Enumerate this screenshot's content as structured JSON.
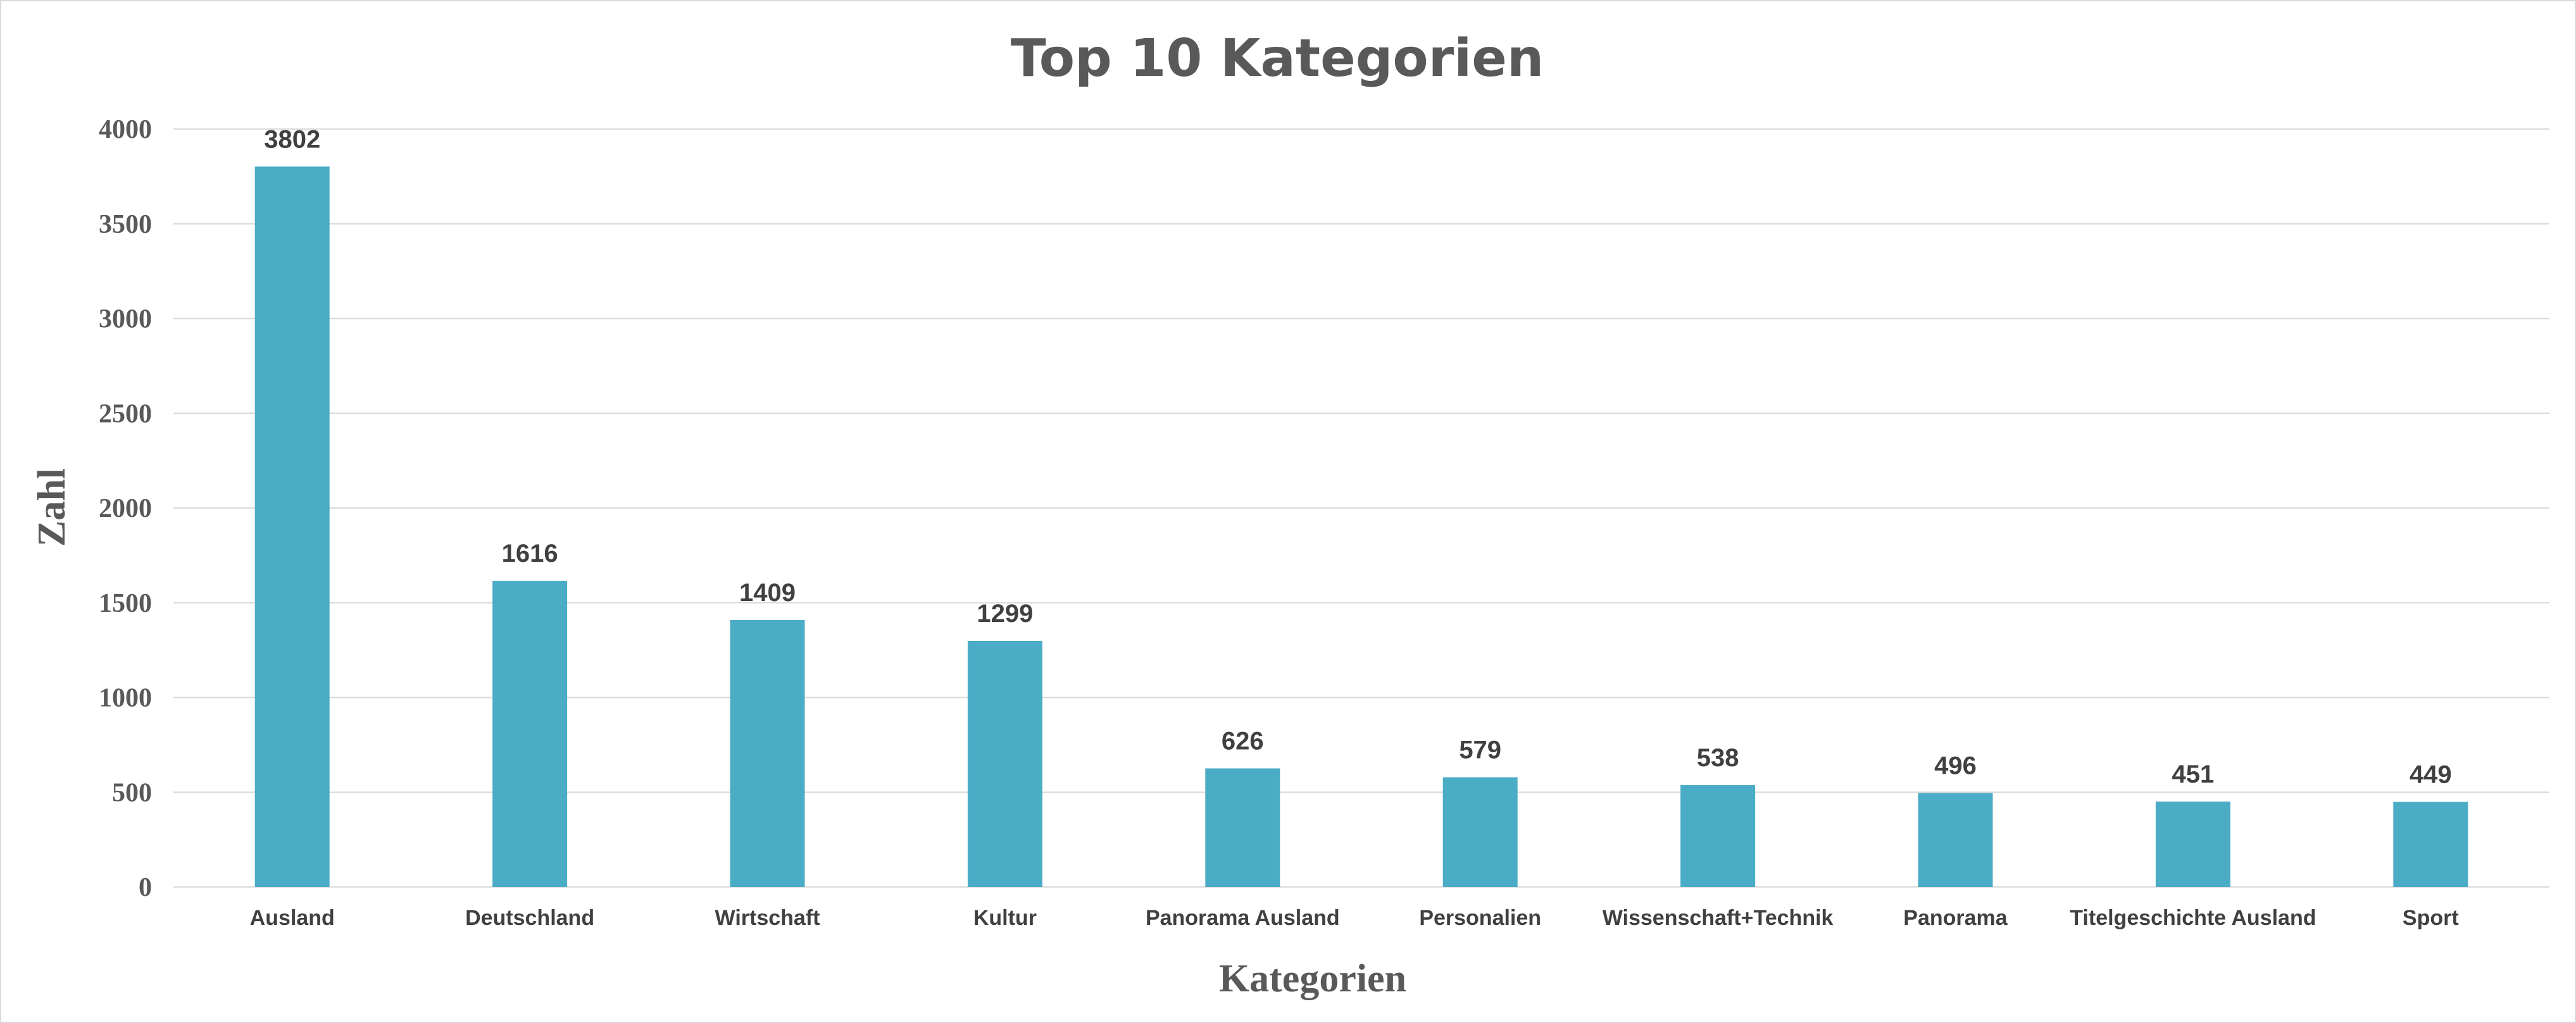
{
  "chart_data": {
    "type": "bar",
    "title": "Top 10 Kategorien",
    "xlabel": "Kategorien",
    "ylabel": "Zahl",
    "categories": [
      "Ausland",
      "Deutschland",
      "Wirtschaft",
      "Kultur",
      "Panorama Ausland",
      "Personalien",
      "Wissenschaft+Technik",
      "Panorama",
      "Titelgeschichte Ausland",
      "Sport"
    ],
    "values": [
      3802,
      1616,
      1409,
      1299,
      626,
      579,
      538,
      496,
      451,
      449
    ],
    "ylim": [
      0,
      4000
    ],
    "yticks": [
      0,
      500,
      1000,
      1500,
      2000,
      2500,
      3000,
      3500,
      4000
    ],
    "grid": true,
    "legend": "none",
    "colors": {
      "bar": "#4bacc6",
      "title": "#595959",
      "axis_text": "#595959",
      "label_text": "#404040",
      "grid": "#d9d9d9"
    }
  }
}
